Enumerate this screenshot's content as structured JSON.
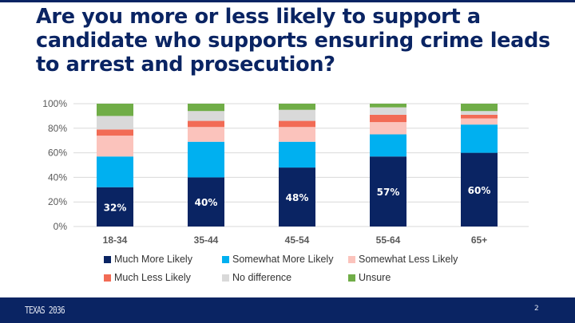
{
  "title": "Are you more or less likely to support a candidate who supports ensuring crime leads to arrest and prosecution?",
  "chart_data": {
    "type": "bar",
    "stacked": true,
    "categories": [
      "18-34",
      "35-44",
      "45-54",
      "55-64",
      "65+"
    ],
    "series": [
      {
        "name": "Much More Likely",
        "color": "#0a2463",
        "values": [
          32,
          40,
          48,
          57,
          60
        ],
        "labels": [
          "32%",
          "40%",
          "48%",
          "57%",
          "60%"
        ]
      },
      {
        "name": "Somewhat More Likely",
        "color": "#00b0f0",
        "values": [
          25,
          29,
          21,
          18,
          23
        ]
      },
      {
        "name": "Somewhat Less Likely",
        "color": "#fbc3bc",
        "values": [
          17,
          12,
          12,
          10,
          5
        ]
      },
      {
        "name": "Much Less Likely",
        "color": "#f26b55",
        "values": [
          5,
          5,
          5,
          6,
          3
        ]
      },
      {
        "name": "No difference",
        "color": "#d9d9d9",
        "values": [
          11,
          8,
          9,
          6,
          3
        ]
      },
      {
        "name": "Unsure",
        "color": "#70ad47",
        "values": [
          10,
          6,
          5,
          3,
          6
        ]
      }
    ],
    "ylim": [
      0,
      100
    ],
    "yticks": [
      "0%",
      "20%",
      "40%",
      "60%",
      "80%",
      "100%"
    ],
    "grid": true,
    "legend": "bottom"
  },
  "footer": {
    "logo": "TEXAS 2036",
    "page": "2"
  }
}
